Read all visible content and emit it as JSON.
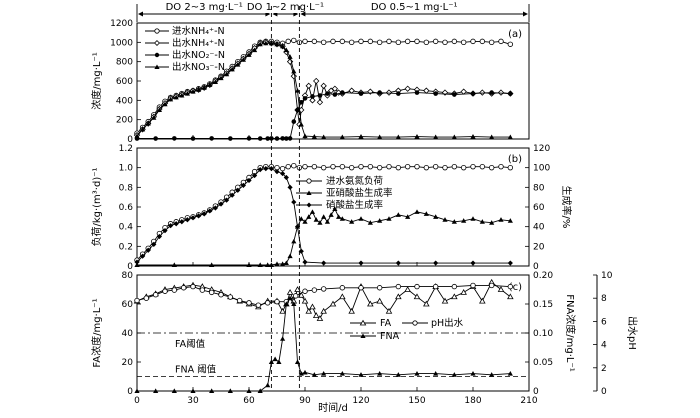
{
  "phases": [
    {
      "label": "DO 2~3 mg·L⁻¹",
      "x": [
        0,
        72
      ]
    },
    {
      "label": "DO 1~2 mg·L⁻¹",
      "x": [
        72,
        87
      ]
    },
    {
      "label": "DO 0.5~1 mg·L⁻¹",
      "x": [
        87,
        210
      ]
    }
  ],
  "x_axis": {
    "label": "时间/d",
    "ticks": [
      "0",
      "30",
      "60",
      "90",
      "120",
      "150",
      "180",
      "210"
    ],
    "range": [
      0,
      210
    ]
  },
  "chart_data": [
    {
      "type": "line",
      "panel_tag": "(a)",
      "ylabel": "浓度/mg·L⁻¹",
      "ylim": [
        0,
        1200
      ],
      "yticks": [
        "0",
        "200",
        "400",
        "600",
        "800",
        "1000",
        "1200"
      ],
      "legend": [
        "进水NH₄⁺-N",
        "出水NH₄⁺-N",
        "出水NO₂⁻-N",
        "出水NO₃⁻-N"
      ],
      "series": [
        {
          "name": "进水NH₄⁺-N",
          "marker": "open-circle",
          "x": [
            0,
            3,
            6,
            9,
            12,
            15,
            18,
            21,
            24,
            27,
            30,
            33,
            36,
            39,
            42,
            45,
            48,
            51,
            54,
            57,
            60,
            63,
            66,
            69,
            72,
            75,
            78,
            81,
            84,
            87,
            90,
            95,
            100,
            105,
            110,
            115,
            120,
            125,
            130,
            135,
            140,
            145,
            150,
            155,
            160,
            165,
            170,
            175,
            180,
            185,
            190,
            195,
            200
          ],
          "y": [
            60,
            120,
            180,
            250,
            330,
            390,
            430,
            450,
            470,
            490,
            500,
            520,
            540,
            570,
            610,
            650,
            700,
            750,
            800,
            850,
            900,
            960,
            1000,
            1010,
            1010,
            1000,
            990,
            1010,
            1020,
            1000,
            1010,
            1010,
            1000,
            1010,
            1010,
            1000,
            1010,
            1010,
            1000,
            1010,
            1000,
            1010,
            1010,
            1000,
            1010,
            1000,
            1010,
            1000,
            1010,
            1010,
            1000,
            1010,
            980
          ]
        },
        {
          "name": "出水NH₄⁺-N",
          "marker": "open-diamond",
          "x": [
            0,
            3,
            6,
            9,
            12,
            15,
            18,
            21,
            24,
            27,
            30,
            33,
            36,
            39,
            42,
            45,
            48,
            51,
            54,
            57,
            60,
            63,
            66,
            69,
            72,
            75,
            78,
            80,
            82,
            84,
            86,
            87,
            88,
            90,
            92,
            94,
            96,
            98,
            100,
            102,
            104,
            106,
            108,
            110,
            115,
            120,
            125,
            130,
            135,
            140,
            145,
            150,
            155,
            160,
            165,
            170,
            175,
            180,
            185,
            190,
            195,
            200
          ],
          "y": [
            40,
            100,
            160,
            230,
            310,
            370,
            420,
            440,
            460,
            480,
            500,
            510,
            530,
            560,
            600,
            640,
            680,
            730,
            780,
            830,
            880,
            940,
            990,
            1000,
            990,
            980,
            960,
            900,
            800,
            650,
            300,
            150,
            300,
            450,
            550,
            400,
            600,
            380,
            550,
            450,
            500,
            520,
            480,
            470,
            500,
            480,
            490,
            470,
            480,
            500,
            520,
            510,
            500,
            490,
            480,
            470,
            490,
            470,
            480,
            470,
            480,
            470
          ]
        },
        {
          "name": "出水NO₂⁻-N",
          "marker": "filled-circle",
          "x": [
            0,
            10,
            20,
            30,
            40,
            50,
            60,
            66,
            70,
            72,
            75,
            78,
            80,
            82,
            84,
            86,
            88,
            90,
            94,
            98,
            102,
            106,
            110,
            120,
            130,
            140,
            150,
            160,
            170,
            180,
            190,
            200
          ],
          "y": [
            5,
            5,
            6,
            5,
            6,
            5,
            6,
            5,
            5,
            6,
            5,
            6,
            5,
            6,
            180,
            300,
            380,
            420,
            440,
            450,
            470,
            460,
            480,
            470,
            480,
            470,
            480,
            470,
            460,
            470,
            480,
            470
          ]
        },
        {
          "name": "出水NO₃⁻-N",
          "marker": "filled-triangle",
          "x": [
            0,
            3,
            6,
            9,
            12,
            15,
            18,
            21,
            24,
            27,
            30,
            33,
            36,
            39,
            42,
            45,
            48,
            51,
            54,
            57,
            60,
            63,
            66,
            69,
            72,
            75,
            78,
            80,
            82,
            84,
            86,
            88,
            90,
            95,
            100,
            110,
            120,
            130,
            140,
            150,
            160,
            170,
            180,
            190,
            200
          ],
          "y": [
            30,
            100,
            160,
            220,
            300,
            360,
            410,
            430,
            450,
            470,
            490,
            510,
            530,
            560,
            590,
            630,
            670,
            720,
            770,
            820,
            870,
            920,
            980,
            990,
            990,
            980,
            960,
            920,
            850,
            700,
            500,
            150,
            30,
            25,
            20,
            20,
            25,
            20,
            20,
            25,
            20,
            20,
            25,
            20,
            20
          ]
        }
      ]
    },
    {
      "type": "line",
      "panel_tag": "(b)",
      "ylabel": "负荷/kg·(m³·d)⁻¹",
      "ylabel_right": "生成率/%",
      "ylim": [
        0,
        1.2
      ],
      "ylim_right": [
        0,
        120
      ],
      "yticks": [
        "0",
        "0.2",
        "0.4",
        "0.6",
        "0.8",
        "1.0",
        "1.2"
      ],
      "yticks_right": [
        "0",
        "20",
        "40",
        "60",
        "80",
        "100",
        "120"
      ],
      "legend": [
        "进水氨氮负荷",
        "亚硝酸盐生成率",
        "硝酸盐生成率"
      ],
      "series": [
        {
          "name": "进水氨氮负荷",
          "marker": "open-circle",
          "axis": "left",
          "x": [
            0,
            3,
            6,
            9,
            12,
            15,
            18,
            21,
            24,
            27,
            30,
            33,
            36,
            39,
            42,
            45,
            48,
            51,
            54,
            57,
            60,
            63,
            66,
            69,
            72,
            75,
            78,
            81,
            84,
            87,
            90,
            95,
            100,
            105,
            110,
            115,
            120,
            125,
            130,
            135,
            140,
            145,
            150,
            155,
            160,
            165,
            170,
            175,
            180,
            185,
            190,
            195,
            200
          ],
          "y": [
            0.06,
            0.12,
            0.18,
            0.25,
            0.33,
            0.39,
            0.43,
            0.45,
            0.47,
            0.49,
            0.5,
            0.52,
            0.54,
            0.57,
            0.61,
            0.65,
            0.7,
            0.75,
            0.8,
            0.85,
            0.9,
            0.96,
            1.0,
            1.01,
            1.01,
            1.0,
            0.99,
            1.01,
            1.02,
            1.0,
            1.01,
            1.01,
            1.0,
            1.01,
            1.01,
            1.0,
            1.01,
            1.01,
            1.0,
            1.01,
            1.0,
            1.01,
            1.01,
            1.0,
            1.01,
            1.0,
            1.01,
            1.0,
            1.01,
            1.01,
            1.0,
            1.01,
            1.0
          ]
        },
        {
          "name": "亚硝酸盐生成率",
          "marker": "filled-triangle",
          "axis": "right",
          "x": [
            0,
            20,
            40,
            60,
            66,
            70,
            72,
            75,
            78,
            80,
            82,
            84,
            86,
            88,
            90,
            92,
            94,
            96,
            98,
            100,
            102,
            104,
            106,
            108,
            110,
            115,
            120,
            125,
            130,
            135,
            140,
            145,
            150,
            155,
            160,
            165,
            170,
            175,
            180,
            185,
            190,
            195,
            200
          ],
          "y": [
            1,
            1,
            1,
            1,
            1,
            1,
            1,
            2,
            2,
            3,
            10,
            25,
            40,
            48,
            45,
            50,
            55,
            47,
            44,
            50,
            45,
            52,
            58,
            50,
            48,
            45,
            48,
            44,
            46,
            48,
            52,
            50,
            55,
            53,
            50,
            47,
            45,
            46,
            48,
            45,
            44,
            47,
            46
          ]
        },
        {
          "name": "硝酸盐生成率",
          "marker": "filled-diamond",
          "axis": "right",
          "x": [
            0,
            3,
            6,
            9,
            12,
            15,
            18,
            21,
            24,
            27,
            30,
            33,
            36,
            39,
            42,
            45,
            48,
            51,
            54,
            57,
            60,
            63,
            66,
            69,
            72,
            75,
            78,
            80,
            82,
            84,
            86,
            88,
            90,
            100,
            120,
            140,
            160,
            180,
            200
          ],
          "y": [
            4,
            10,
            16,
            22,
            30,
            36,
            41,
            43,
            45,
            47,
            49,
            51,
            53,
            56,
            59,
            63,
            67,
            72,
            77,
            82,
            87,
            92,
            98,
            99,
            99,
            96,
            94,
            90,
            80,
            65,
            40,
            15,
            4,
            3,
            3,
            3,
            3,
            3,
            3
          ]
        }
      ]
    },
    {
      "type": "line",
      "panel_tag": "(c)",
      "ylabel": "FA浓度/mg·L⁻¹",
      "ylabel_right": "FNA浓度/mg·L⁻¹",
      "ylabel_right2": "出水pH",
      "ylim": [
        0,
        80
      ],
      "ylim_right": [
        0,
        0.2
      ],
      "ylim_right2": [
        0,
        10
      ],
      "yticks": [
        "0",
        "20",
        "40",
        "60",
        "80"
      ],
      "yticks_right": [
        "0",
        "0.05",
        "0.10",
        "0.15",
        "0.20"
      ],
      "yticks_right2": [
        "0",
        "2",
        "4",
        "6",
        "8",
        "10"
      ],
      "legend": [
        "FA",
        "pH出水",
        "FNA"
      ],
      "thresholds": [
        {
          "label": "FA阈值",
          "value": 40,
          "style": "dash-dot"
        },
        {
          "label": "FNA 阈值",
          "value": 10,
          "style": "dashed"
        }
      ],
      "series": [
        {
          "name": "FA",
          "marker": "open-triangle",
          "axis": "left",
          "x": [
            0,
            5,
            10,
            15,
            20,
            25,
            30,
            35,
            40,
            45,
            50,
            55,
            60,
            65,
            70,
            75,
            78,
            80,
            82,
            84,
            86,
            88,
            90,
            92,
            94,
            96,
            98,
            100,
            105,
            110,
            115,
            120,
            125,
            130,
            135,
            140,
            145,
            150,
            155,
            160,
            165,
            170,
            175,
            180,
            185,
            190,
            195,
            200
          ],
          "y": [
            62,
            65,
            67,
            70,
            71,
            72,
            73,
            72,
            70,
            68,
            65,
            62,
            60,
            58,
            62,
            62,
            55,
            60,
            68,
            62,
            70,
            66,
            62,
            55,
            58,
            52,
            50,
            55,
            60,
            65,
            55,
            72,
            60,
            62,
            55,
            65,
            70,
            65,
            60,
            72,
            62,
            65,
            68,
            72,
            62,
            75,
            70,
            65
          ]
        },
        {
          "name": "pH出水",
          "marker": "open-circle",
          "axis": "right2",
          "x": [
            0,
            5,
            10,
            15,
            20,
            25,
            30,
            35,
            40,
            45,
            50,
            55,
            60,
            65,
            70,
            75,
            80,
            85,
            90,
            95,
            100,
            110,
            120,
            130,
            140,
            150,
            160,
            170,
            180,
            190,
            200
          ],
          "y": [
            7.8,
            8.0,
            8.3,
            8.6,
            8.7,
            8.9,
            9.0,
            8.7,
            8.5,
            8.3,
            8.1,
            7.8,
            7.6,
            7.4,
            7.6,
            7.7,
            7.7,
            8.2,
            8.6,
            8.7,
            8.8,
            8.9,
            8.9,
            8.9,
            9.0,
            9.0,
            9.0,
            9.0,
            9.1,
            9.1,
            9.0
          ]
        },
        {
          "name": "FNA",
          "marker": "filled-triangle",
          "axis": "right",
          "x": [
            0,
            10,
            20,
            30,
            40,
            50,
            60,
            66,
            70,
            72,
            74,
            76,
            78,
            80,
            82,
            84,
            86,
            88,
            90,
            95,
            100,
            110,
            120,
            130,
            140,
            150,
            160,
            170,
            180,
            190,
            200
          ],
          "y": [
            0.0,
            0.0,
            0.0,
            0.0,
            0.0,
            0.0,
            0.0,
            0.0,
            0.01,
            0.05,
            0.055,
            0.05,
            0.09,
            0.15,
            0.16,
            0.15,
            0.05,
            0.03,
            0.032,
            0.028,
            0.03,
            0.03,
            0.028,
            0.03,
            0.028,
            0.03,
            0.03,
            0.028,
            0.03,
            0.028,
            0.03
          ]
        }
      ]
    }
  ]
}
